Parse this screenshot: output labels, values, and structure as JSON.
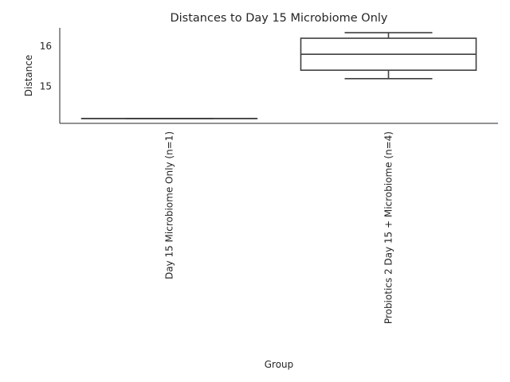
{
  "chart_data": {
    "type": "box",
    "title": "Distances to Day 15 Microbiome Only",
    "xlabel": "Group",
    "ylabel": "Distance",
    "categories": [
      "Day 15 Microbiome Only (n=1)",
      "Probiotics 2 Day 15 + Microbiome (n=4)"
    ],
    "ylim": [
      14.07,
      16.46
    ],
    "yticks": [
      15,
      16
    ],
    "ytick_labels": [
      "15",
      "16"
    ],
    "grid": false,
    "series": [
      {
        "category": "Day 15 Microbiome Only (n=1)",
        "whisker_low": 14.19,
        "q1": 14.19,
        "median": 14.19,
        "q3": 14.19,
        "whisker_high": 14.19
      },
      {
        "category": "Probiotics 2 Day 15 + Microbiome (n=4)",
        "whisker_low": 15.19,
        "q1": 15.4,
        "median": 15.8,
        "q3": 16.2,
        "whisker_high": 16.34
      }
    ]
  },
  "colors": {
    "axis": "#262626",
    "box_edge": "#3f3f3f",
    "background": "#ffffff"
  }
}
